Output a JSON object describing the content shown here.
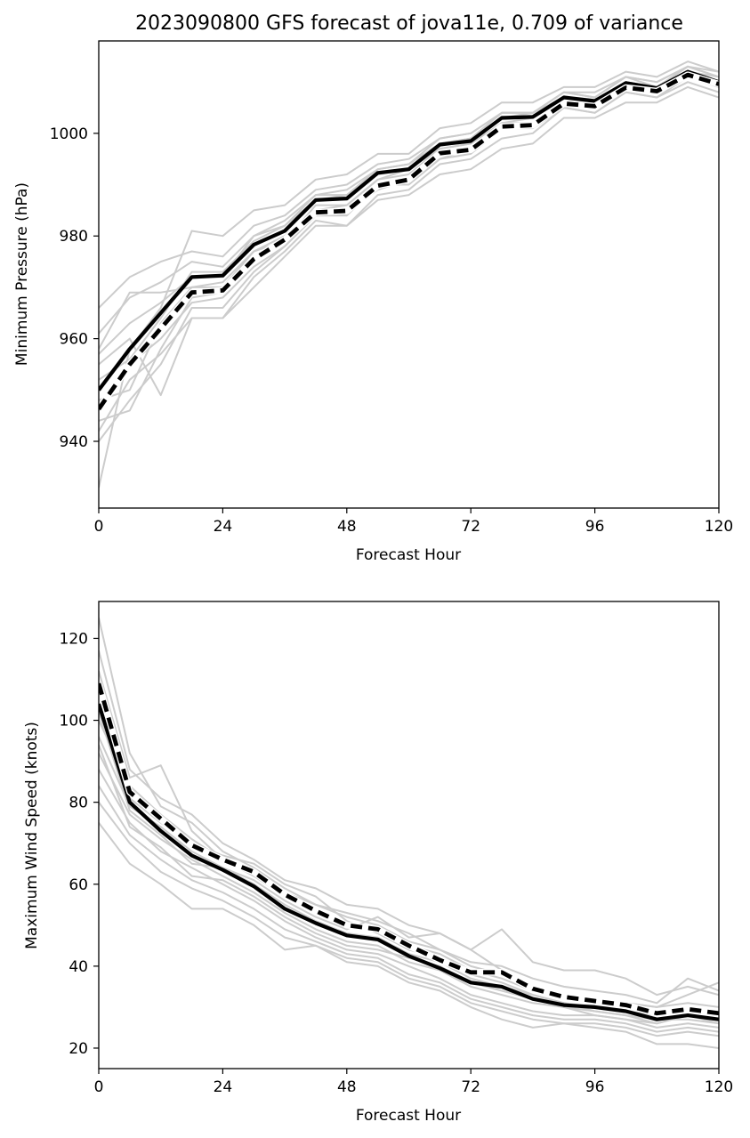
{
  "chart_data": [
    {
      "type": "line",
      "title": "2023090800 GFS forecast of jova11e, 0.709 of variance",
      "xlabel": "Forecast Hour",
      "ylabel": "Minimum Pressure (hPa)",
      "xlim": [
        0,
        120
      ],
      "ylim": [
        927,
        1018
      ],
      "xticks": [
        "0",
        "24",
        "48",
        "72",
        "96",
        "120"
      ],
      "yticks": [
        "940",
        "960",
        "980",
        "1000"
      ],
      "grid": false,
      "legend": "none",
      "x": [
        0,
        6,
        12,
        18,
        24,
        30,
        36,
        42,
        48,
        54,
        60,
        66,
        72,
        78,
        84,
        90,
        96,
        102,
        108,
        114,
        120
      ],
      "series": [
        {
          "style": "solid",
          "color": "#000000",
          "values": [
            950,
            958,
            965,
            972,
            972.3,
            978.3,
            981,
            987,
            987.3,
            992.3,
            993,
            997.8,
            998.5,
            1003,
            1003.2,
            1007,
            1006.3,
            1009.8,
            1008.8,
            1012,
            1010
          ]
        },
        {
          "style": "dashed",
          "color": "#000000",
          "values": [
            946.3,
            955,
            962,
            969,
            969.4,
            975.5,
            979.3,
            984.6,
            984.9,
            989.8,
            991,
            996.1,
            996.8,
            1001.3,
            1001.6,
            1005.8,
            1005.3,
            1008.9,
            1008.2,
            1011.4,
            1009.6
          ]
        },
        {
          "style": "ensemble",
          "color": "#cccccc",
          "values": [
            931,
            958,
            966,
            981,
            980,
            985,
            986,
            991,
            992,
            996,
            996,
            1001,
            1002,
            1006,
            1006,
            1009,
            1009,
            1012,
            1011,
            1014,
            1012
          ]
        },
        {
          "style": "ensemble",
          "color": "#cccccc",
          "values": [
            966,
            972,
            975,
            977,
            976,
            982,
            984,
            989,
            990,
            994,
            995,
            999,
            1000,
            1004,
            1004,
            1008,
            1007,
            1011,
            1009,
            1013,
            1011
          ]
        },
        {
          "style": "ensemble",
          "color": "#cccccc",
          "values": [
            940,
            948,
            955,
            966,
            966,
            973,
            978,
            984,
            985,
            989,
            991,
            995,
            996,
            1001,
            1002,
            1006,
            1005,
            1009,
            1008,
            1012,
            1010
          ]
        },
        {
          "style": "ensemble",
          "color": "#cccccc",
          "values": [
            958,
            969,
            969,
            970,
            970,
            977,
            980,
            985,
            984,
            990,
            990,
            995,
            997,
            1002,
            1002,
            1006,
            1006,
            1010,
            1009,
            1012,
            1010
          ]
        },
        {
          "style": "ensemble",
          "color": "#cccccc",
          "values": [
            955,
            960,
            949,
            964,
            964,
            972,
            977,
            983,
            982,
            988,
            989,
            994,
            995,
            999,
            1000,
            1005,
            1004,
            1008,
            1007,
            1011,
            1009
          ]
        },
        {
          "style": "ensemble",
          "color": "#cccccc",
          "values": [
            944,
            946,
            958,
            968,
            969,
            975,
            979,
            985,
            986,
            991,
            992,
            997,
            998,
            1002,
            1003,
            1007,
            1006,
            1010,
            1009,
            1013,
            1011
          ]
        },
        {
          "style": "ensemble",
          "color": "#cccccc",
          "values": [
            942,
            952,
            957,
            964,
            964,
            970,
            976,
            982,
            982,
            987,
            988,
            992,
            993,
            997,
            998,
            1003,
            1003,
            1006,
            1006,
            1009,
            1007
          ]
        },
        {
          "style": "ensemble",
          "color": "#cccccc",
          "values": [
            961,
            968,
            971,
            975,
            974,
            980,
            982,
            988,
            988,
            993,
            994,
            999,
            1000,
            1004,
            1004,
            1008,
            1007,
            1011,
            1010,
            1013,
            1011
          ]
        },
        {
          "style": "ensemble",
          "color": "#cccccc",
          "values": [
            948,
            950,
            963,
            970,
            971,
            977,
            979,
            986,
            986,
            991,
            993,
            997,
            998,
            1003,
            1003,
            1007,
            1006,
            1010,
            1009,
            1012,
            1010
          ]
        },
        {
          "style": "ensemble",
          "color": "#cccccc",
          "values": [
            952,
            956,
            964,
            973,
            973,
            979,
            982,
            987,
            988,
            992,
            993,
            998,
            999,
            1003,
            1004,
            1007,
            1006,
            1010,
            1009,
            1012,
            1011
          ]
        },
        {
          "style": "ensemble",
          "color": "#cccccc",
          "values": [
            946,
            955,
            960,
            967,
            968,
            974,
            978,
            984,
            984,
            990,
            991,
            996,
            997,
            1001,
            1001,
            1005,
            1004,
            1008,
            1007,
            1010,
            1008
          ]
        },
        {
          "style": "ensemble",
          "color": "#cccccc",
          "values": [
            957,
            963,
            967,
            972,
            972,
            980,
            983,
            988,
            989,
            993,
            994,
            998,
            999,
            1004,
            1004,
            1008,
            1008,
            1011,
            1010,
            1013,
            1012
          ]
        }
      ]
    },
    {
      "type": "line",
      "title": "",
      "xlabel": "Forecast Hour",
      "ylabel": "Maximum Wind Speed (knots)",
      "xlim": [
        0,
        120
      ],
      "ylim": [
        15,
        129
      ],
      "xticks": [
        "0",
        "24",
        "48",
        "72",
        "96",
        "120"
      ],
      "yticks": [
        "20",
        "40",
        "60",
        "80",
        "100",
        "120"
      ],
      "grid": false,
      "legend": "none",
      "x": [
        0,
        6,
        12,
        18,
        24,
        30,
        36,
        42,
        48,
        54,
        60,
        66,
        72,
        78,
        84,
        90,
        96,
        102,
        108,
        114,
        120
      ],
      "series": [
        {
          "style": "solid",
          "color": "#000000",
          "values": [
            104,
            80,
            73,
            67,
            63.5,
            59.5,
            54,
            50.5,
            47.5,
            46.5,
            42.5,
            39.5,
            36,
            35,
            32,
            30.5,
            30,
            29,
            27,
            28,
            27
          ]
        },
        {
          "style": "dashed",
          "color": "#000000",
          "values": [
            109,
            82.5,
            76,
            69.5,
            66,
            63,
            57.5,
            53.5,
            50,
            49,
            45,
            41.5,
            38.5,
            38.5,
            34.5,
            32.5,
            31.5,
            30.5,
            28.5,
            29.5,
            28.5
          ]
        },
        {
          "style": "ensemble",
          "color": "#cccccc",
          "values": [
            125,
            92,
            79,
            75,
            68,
            64,
            59,
            55,
            52,
            50,
            46,
            44,
            40,
            38,
            35,
            33,
            32,
            31,
            30,
            33,
            36
          ]
        },
        {
          "style": "ensemble",
          "color": "#cccccc",
          "values": [
            117,
            88,
            81,
            77,
            70,
            66,
            61,
            59,
            55,
            54,
            50,
            48,
            44,
            49,
            41,
            39,
            39,
            37,
            33,
            35,
            33
          ]
        },
        {
          "style": "ensemble",
          "color": "#cccccc",
          "values": [
            112,
            86,
            89,
            73,
            66,
            63,
            58,
            55,
            53,
            51,
            48,
            44,
            41,
            40,
            37,
            35,
            34,
            33,
            31,
            37,
            34
          ]
        },
        {
          "style": "ensemble",
          "color": "#cccccc",
          "values": [
            100,
            84,
            77,
            71,
            66,
            62,
            57,
            54,
            50,
            49,
            45,
            43,
            39,
            37,
            34,
            33,
            32,
            31,
            30,
            31,
            30
          ]
        },
        {
          "style": "ensemble",
          "color": "#cccccc",
          "values": [
            96,
            79,
            74,
            68,
            64,
            60,
            55,
            51,
            48,
            47,
            43,
            41,
            37,
            35,
            33,
            31,
            30,
            29,
            28,
            29,
            28
          ]
        },
        {
          "style": "ensemble",
          "color": "#cccccc",
          "values": [
            92,
            77,
            71,
            66,
            62,
            58,
            53,
            49,
            46,
            45,
            41,
            39,
            35,
            33,
            31,
            30,
            29,
            28,
            27,
            27,
            26
          ]
        },
        {
          "style": "ensemble",
          "color": "#cccccc",
          "values": [
            88,
            75,
            68,
            64,
            60,
            56,
            51,
            47,
            44,
            43,
            40,
            37,
            33,
            31,
            29,
            28,
            28,
            27,
            25,
            26,
            25
          ]
        },
        {
          "style": "ensemble",
          "color": "#cccccc",
          "values": [
            84,
            72,
            66,
            61,
            58,
            54,
            49,
            46,
            43,
            42,
            38,
            36,
            32,
            30,
            28,
            27,
            27,
            26,
            24,
            25,
            24
          ]
        },
        {
          "style": "ensemble",
          "color": "#cccccc",
          "values": [
            80,
            70,
            63,
            59,
            56,
            52,
            47,
            45,
            42,
            41,
            37,
            35,
            31,
            29,
            27,
            26,
            26,
            25,
            23,
            24,
            23
          ]
        },
        {
          "style": "ensemble",
          "color": "#cccccc",
          "values": [
            75,
            65,
            60,
            54,
            54,
            50,
            44,
            45,
            41,
            40,
            36,
            34,
            30,
            27,
            25,
            26,
            25,
            24,
            21,
            21,
            20
          ]
        },
        {
          "style": "ensemble",
          "color": "#cccccc",
          "values": [
            102,
            78,
            72,
            65,
            64,
            61,
            56,
            52,
            49,
            52,
            47,
            48,
            44,
            39,
            35,
            32,
            31,
            30,
            28,
            30,
            28
          ]
        },
        {
          "style": "ensemble",
          "color": "#cccccc",
          "values": [
            108,
            81,
            75,
            70,
            67,
            65,
            60,
            57,
            51,
            48,
            44,
            42,
            38,
            36,
            33,
            31,
            29,
            28,
            26,
            28,
            27
          ]
        },
        {
          "style": "ensemble",
          "color": "#cccccc",
          "values": [
            94,
            74,
            69,
            62,
            61,
            57,
            52,
            48,
            45,
            44,
            42,
            40,
            36,
            34,
            32,
            30,
            28,
            27,
            26,
            28,
            26
          ]
        }
      ]
    }
  ]
}
